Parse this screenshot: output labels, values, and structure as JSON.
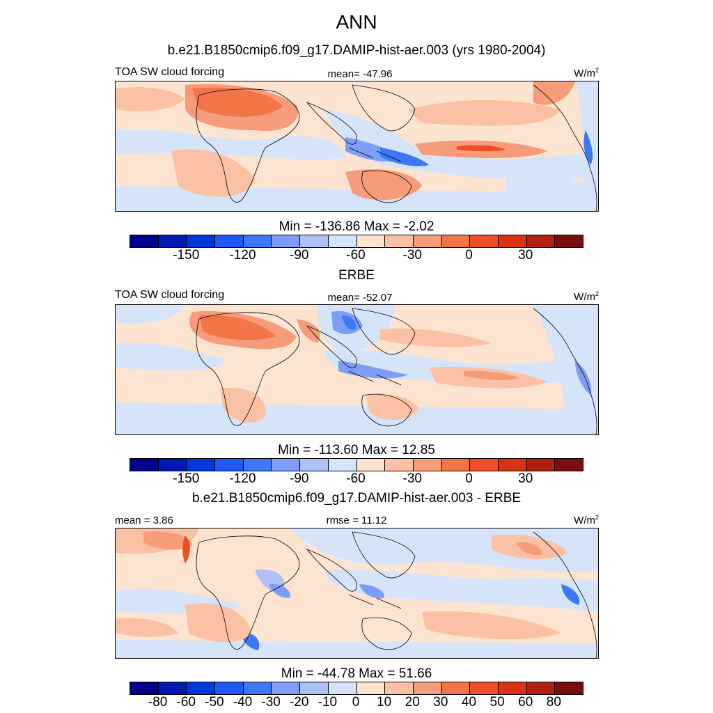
{
  "figure": {
    "title": "ANN"
  },
  "panels": [
    {
      "header": "b.e21.B1850cmip6.f09_g17.DAMIP-hist-aer.003 (yrs 1980-2004)",
      "left_label": "TOA SW cloud forcing",
      "center_label": "mean= -47.96",
      "units": "W/m",
      "units_sup": "2",
      "minmax": "Min = -136.86 Max =  -2.02",
      "ticks": [
        "-150",
        "-120",
        "-90",
        "-60",
        "-30",
        "0",
        "30"
      ],
      "colors": [
        "#00008c",
        "#0019b3",
        "#0037d9",
        "#1f58f2",
        "#3d79f7",
        "#7d9ef7",
        "#aec1f7",
        "#d6e4fa",
        "#fde4d0",
        "#fbc1a4",
        "#f79c7a",
        "#f27548",
        "#ee4f26",
        "#d93314",
        "#b02112",
        "#7b0d0d"
      ]
    },
    {
      "header": "ERBE",
      "left_label": "TOA SW cloud forcing",
      "center_label": "mean= -52.07",
      "units": "W/m",
      "units_sup": "2",
      "minmax": "Min = -113.60 Max =  12.85",
      "ticks": [
        "-150",
        "-120",
        "-90",
        "-60",
        "-30",
        "0",
        "30"
      ],
      "colors": [
        "#00008c",
        "#0019b3",
        "#0037d9",
        "#1f58f2",
        "#3d79f7",
        "#7d9ef7",
        "#aec1f7",
        "#d6e4fa",
        "#fde4d0",
        "#fbc1a4",
        "#f79c7a",
        "#f27548",
        "#ee4f26",
        "#d93314",
        "#b02112",
        "#7b0d0d"
      ]
    },
    {
      "header": "b.e21.B1850cmip6.f09_g17.DAMIP-hist-aer.003 - ERBE",
      "left_label": "mean =   3.86",
      "center_label": "rmse =  11.12",
      "units": "W/m",
      "units_sup": "2",
      "minmax": "Min = -44.78 Max =  51.66",
      "ticks": [
        "-80",
        "-60",
        "-50",
        "-40",
        "-30",
        "-20",
        "-10",
        "0",
        "10",
        "20",
        "30",
        "40",
        "50",
        "60",
        "80"
      ],
      "colors": [
        "#00008c",
        "#0019b3",
        "#0037d9",
        "#1f58f2",
        "#3d79f7",
        "#7d9ef7",
        "#aec1f7",
        "#d6e4fa",
        "#fde4d0",
        "#fbc1a4",
        "#f79c7a",
        "#f27548",
        "#ee4f26",
        "#d93314",
        "#b02112",
        "#7b0d0d"
      ]
    }
  ]
}
